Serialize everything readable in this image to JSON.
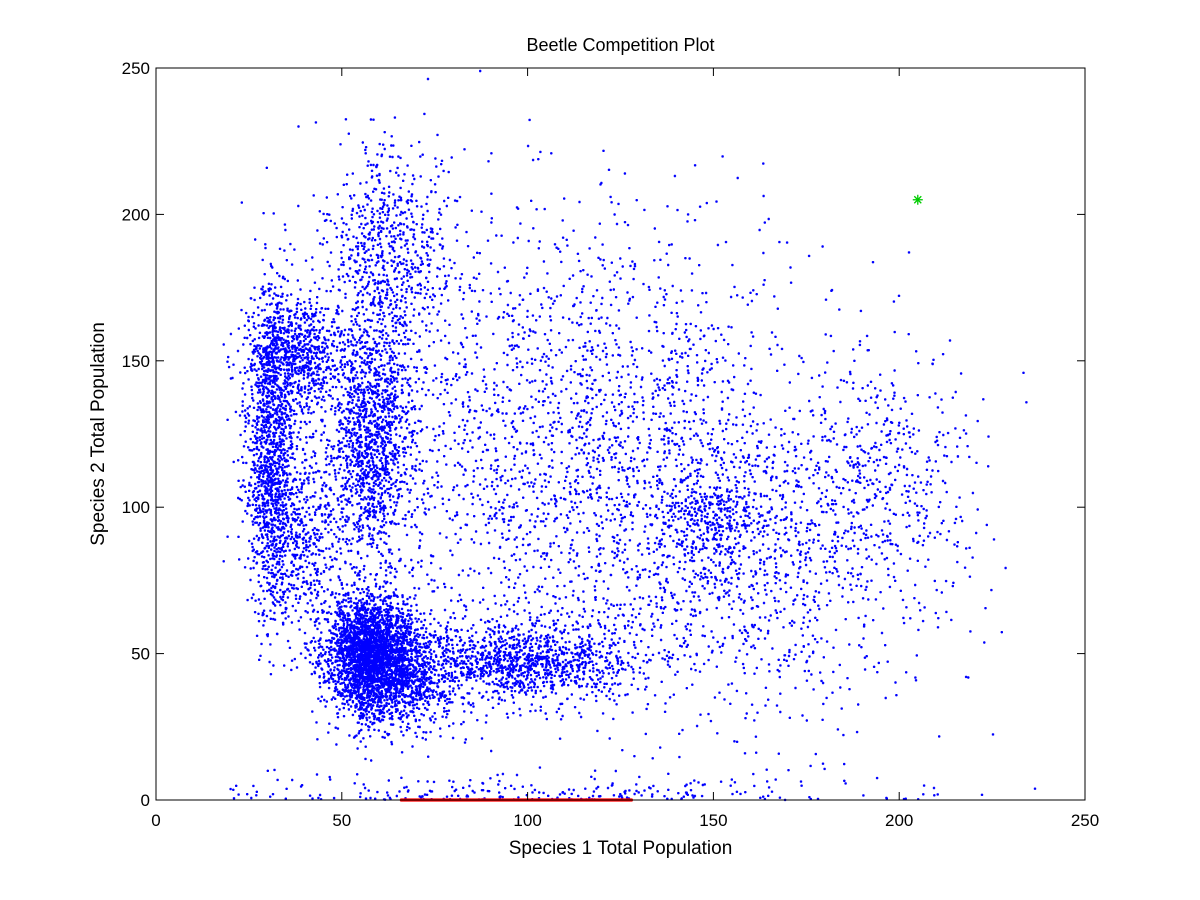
{
  "chart_data": {
    "type": "scatter",
    "title": "Beetle Competition Plot",
    "xlabel": "Species 1 Total Population",
    "ylabel": "Species 2 Total Population",
    "xlim": [
      0,
      250
    ],
    "ylim": [
      0,
      250
    ],
    "x_ticks": [
      "0",
      "50",
      "100",
      "150",
      "200",
      "250"
    ],
    "y_ticks": [
      "0",
      "50",
      "100",
      "150",
      "200",
      "250"
    ],
    "grid": false,
    "series": [
      {
        "color": "#0000ff",
        "marker": "dot",
        "clusters": [
          {
            "cx": 58,
            "cy": 50,
            "sx": 6,
            "sy": 10,
            "n": 2600
          },
          {
            "cx": 66,
            "cy": 42,
            "sx": 9,
            "sy": 9,
            "n": 900
          },
          {
            "cx": 31,
            "cy": 120,
            "sx": 3.5,
            "sy": 28,
            "n": 1300
          },
          {
            "cx": 38,
            "cy": 152,
            "sx": 6,
            "sy": 10,
            "n": 700
          },
          {
            "cx": 58,
            "cy": 125,
            "sx": 6,
            "sy": 22,
            "n": 1400
          },
          {
            "cx": 62,
            "cy": 188,
            "sx": 9,
            "sy": 18,
            "n": 700
          },
          {
            "cx": 100,
            "cy": 47,
            "sx": 14,
            "sy": 7,
            "n": 1100
          },
          {
            "cx": 115,
            "cy": 120,
            "sx": 30,
            "sy": 40,
            "n": 2200
          },
          {
            "cx": 160,
            "cy": 80,
            "sx": 25,
            "sy": 30,
            "n": 1000
          },
          {
            "cx": 150,
            "cy": 95,
            "sx": 8,
            "sy": 10,
            "n": 300
          },
          {
            "cx": 195,
            "cy": 110,
            "sx": 12,
            "sy": 22,
            "n": 400
          },
          {
            "cx": 40,
            "cy": 90,
            "sx": 6,
            "sy": 18,
            "n": 500
          },
          {
            "cx": 100,
            "cy": 2,
            "sx": 50,
            "sy": 3,
            "n": 250
          }
        ]
      },
      {
        "color": "#ff0000",
        "marker": "dot",
        "x_range": [
          66,
          128
        ],
        "y": 0,
        "n": 900
      },
      {
        "color": "#00cc00",
        "marker": "asterisk",
        "points": [
          {
            "x": 205,
            "y": 205
          }
        ]
      }
    ]
  }
}
